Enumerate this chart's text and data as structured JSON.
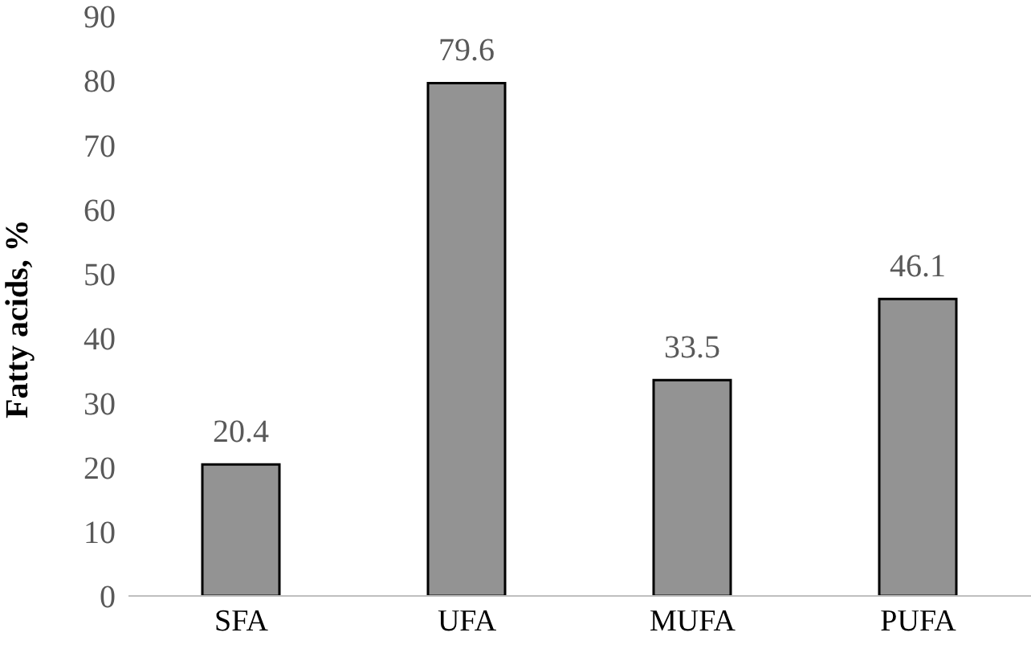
{
  "chart_data": {
    "type": "bar",
    "ylabel": "Fatty acids, %",
    "categories": [
      "SFA",
      "UFA",
      "MUFA",
      "PUFA"
    ],
    "values": [
      20.4,
      79.6,
      33.5,
      46.1
    ],
    "color": "#939393",
    "ylim": [
      0,
      90
    ],
    "yticks": [
      0,
      10,
      20,
      30,
      40,
      50,
      60,
      70,
      80,
      90
    ],
    "grid": false,
    "data_labels": true
  }
}
